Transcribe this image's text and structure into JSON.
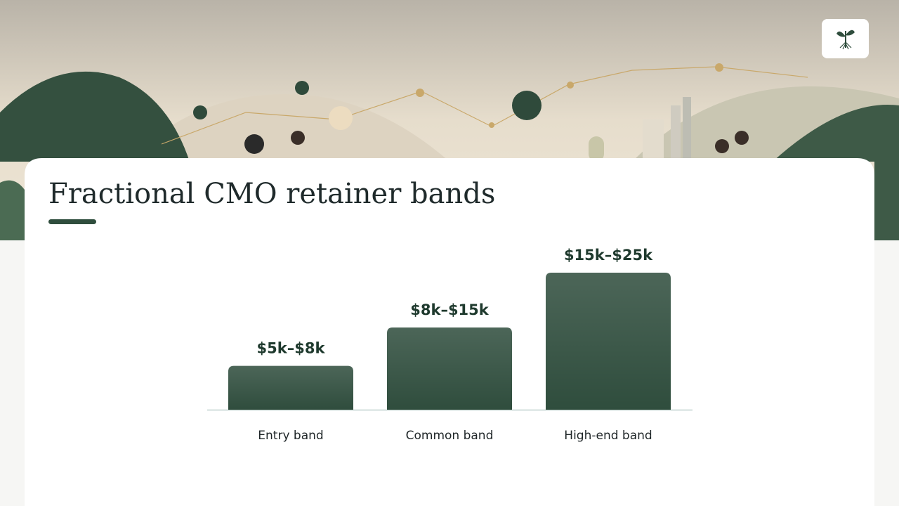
{
  "chart_data": {
    "type": "bar",
    "title": "Fractional CMO retainer bands",
    "categories": [
      "Entry band",
      "Common band",
      "High-end band"
    ],
    "values": [
      8000,
      15000,
      25000
    ],
    "value_labels": [
      "$5k–$8k",
      "$8k–$15k",
      "$15k–$25k"
    ],
    "color": "#2f4d3d"
  }
}
